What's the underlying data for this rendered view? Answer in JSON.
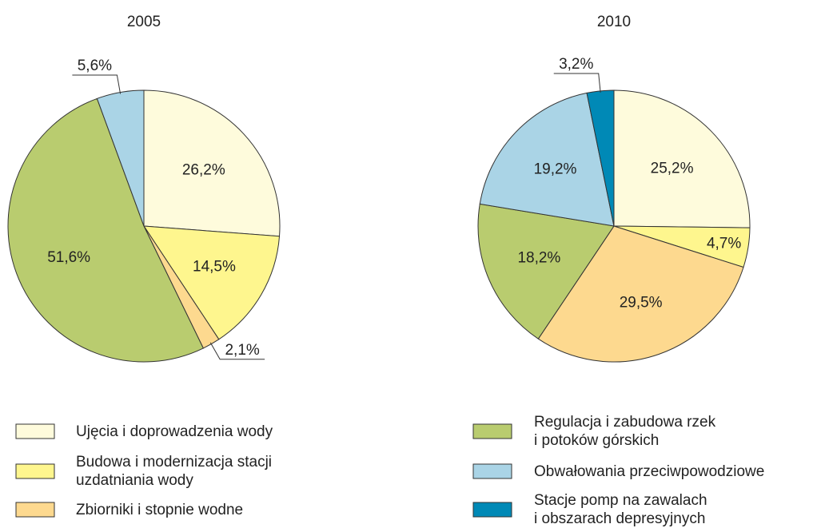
{
  "chart_data": [
    {
      "type": "pie",
      "title": "2005",
      "values": [
        26.2,
        14.5,
        2.1,
        51.6,
        5.6,
        null
      ],
      "value_labels": [
        "26,2%",
        "14,5%",
        "2,1%",
        "51,6%",
        "5,6%",
        null
      ]
    },
    {
      "type": "pie",
      "title": "2010",
      "values": [
        25.2,
        4.7,
        29.5,
        18.2,
        19.2,
        3.2
      ],
      "value_labels": [
        "25,2%",
        "4,7%",
        "29,5%",
        "18,2%",
        "19,2%",
        "3,2%"
      ]
    }
  ],
  "legend": {
    "categories": [
      "Ujęcia i doprowadzenia wody",
      "Budowa i modernizacja stacji\nuzdatniania wody",
      "Zbiorniki i stopnie wodne",
      "Regulacja i zabudowa rzek\ni potoków górskich",
      "Obwałowania przeciwpowodziowe",
      "Stacje pomp na zawalach\ni obszarach depresyjnych"
    ],
    "colors": [
      "#fefbdc",
      "#fef68e",
      "#fdd98f",
      "#b9cc6f",
      "#aad4e6",
      "#0089b6"
    ]
  }
}
